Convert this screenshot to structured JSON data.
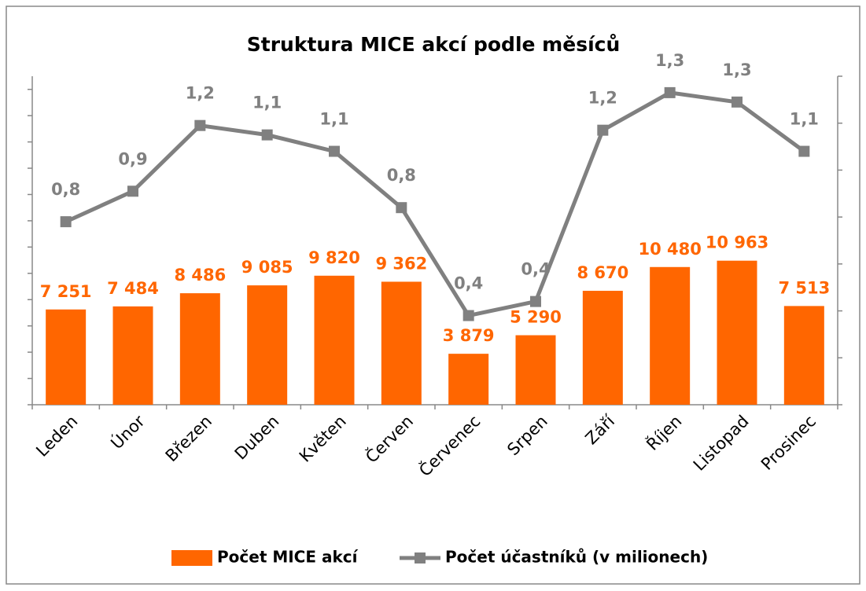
{
  "chart_data": {
    "type": "bar-line",
    "title": "Struktura MICE akcí podle měsíců",
    "categories": [
      "Leden",
      "Únor",
      "Březen",
      "Duben",
      "Květen",
      "Červen",
      "Červenec",
      "Srpen",
      "Září",
      "Říjen",
      "Listopad",
      "Prosinec"
    ],
    "series": [
      {
        "name": "Počet MICE akcí",
        "type": "bar",
        "color": "#ff6600",
        "values": [
          7251,
          7484,
          8486,
          9085,
          9820,
          9362,
          3879,
          5290,
          8670,
          10480,
          10963,
          7513
        ],
        "value_labels": [
          "7 251",
          "7 484",
          "8 486",
          "9 085",
          "9 820",
          "9 362",
          "3 879",
          "5 290",
          "8 670",
          "10 480",
          "10 963",
          "7 513"
        ]
      },
      {
        "name": "Počet účastníků (v milionech)",
        "type": "line",
        "axis": "y2",
        "color": "#808080",
        "values": [
          0.78,
          0.91,
          1.19,
          1.15,
          1.08,
          0.84,
          0.38,
          0.44,
          1.17,
          1.33,
          1.29,
          1.08
        ],
        "value_labels": [
          "0,8",
          "0,9",
          "1,2",
          "1,1",
          "1,1",
          "0,8",
          "0,4",
          "0,4",
          "1,2",
          "1,3",
          "1,3",
          "1,1"
        ]
      }
    ],
    "ylim": [
      0,
      25000
    ],
    "yticks": [
      0,
      2000,
      4000,
      6000,
      8000,
      10000,
      12000,
      14000,
      16000,
      18000,
      20000,
      22000,
      24000
    ],
    "y2lim": [
      0,
      1.4
    ],
    "y2ticks": [
      0,
      0.2,
      0.4,
      0.6,
      0.8,
      1.0,
      1.2,
      1.4
    ],
    "legend": "bottom"
  }
}
